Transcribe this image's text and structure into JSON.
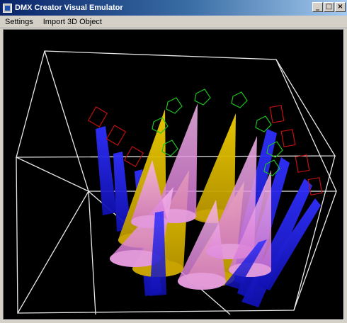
{
  "window": {
    "title": "DMX Creator Visual Emulator",
    "controls": {
      "minimize": "_",
      "maximize": "□",
      "close": "×"
    }
  },
  "menu": [
    {
      "label": "Settings"
    },
    {
      "label": "Import 3D Object"
    }
  ],
  "icons": {
    "app": "app-icon",
    "minimize": "minimize-icon",
    "maximize": "maximize-icon",
    "close": "close-icon"
  },
  "colors": {
    "viewport_background": "#000000",
    "wireframe": "#e8e8e8",
    "cone_yellow": "#e8c000",
    "cone_pink": "#f0a0e0",
    "cone_blue": "#2020e0",
    "fixture_green": "#20c020",
    "fixture_red": "#c01010"
  }
}
